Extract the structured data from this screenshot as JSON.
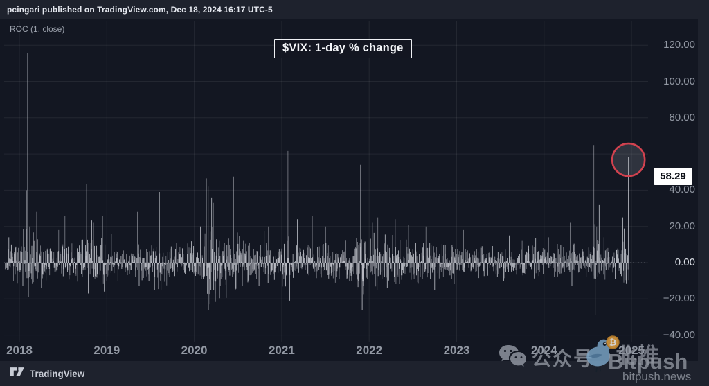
{
  "attribution": "pcingari published on TradingView.com, Dec 18, 2024 16:17 UTC-5",
  "indicator_label": "ROC (1, close)",
  "footer": {
    "brand": "TradingView"
  },
  "watermark": {
    "wechat_label": "公众号",
    "brand_cn": "北推",
    "brand": "Bitpush",
    "domain": "bitpush.news"
  },
  "colors": {
    "chart_bg": "#131722",
    "frame_bg": "#1e222d",
    "bar": "#c9ccd4",
    "grid": "rgba(255,255,255,0.07)",
    "annotation_red": "#d2424f",
    "badge_bg": "#ffffff",
    "bird_blue": "#7ba6c8",
    "bitcoin_orange": "#e8a33d"
  },
  "chart_data": {
    "type": "bar",
    "title": "$VIX: 1-day % change",
    "indicator": "ROC (1, close)",
    "xlabel": "",
    "ylabel": "",
    "x_tick_labels": [
      "2018",
      "2019",
      "2020",
      "2021",
      "2022",
      "2023",
      "2024",
      "2025"
    ],
    "x_tick_years": [
      2018,
      2019,
      2020,
      2021,
      2022,
      2023,
      2024,
      2025
    ],
    "y_gridline_values": [
      120,
      100,
      80,
      60,
      40,
      20,
      0,
      -20,
      -40
    ],
    "y_tick_labels": [
      {
        "value": 120,
        "label": "120.00"
      },
      {
        "value": 100,
        "label": "100.00"
      },
      {
        "value": 80,
        "label": "80.00"
      },
      {
        "value": 40,
        "label": "40.00"
      },
      {
        "value": 20,
        "label": "20.00"
      },
      {
        "value": 0,
        "label": "0.00",
        "highlight": true
      },
      {
        "value": -20,
        "label": "−20.00"
      },
      {
        "value": -40,
        "label": "−40.00"
      }
    ],
    "xlim": [
      2017.84,
      2025.05
    ],
    "ylim": [
      -44,
      134
    ],
    "grid": true,
    "zero_line": true,
    "last_value": 58.29,
    "price_badge_label": "58.29",
    "annotation_circle": {
      "x": 2024.965,
      "y": 58.29
    },
    "notable_spikes": [
      [
        2017.88,
        14
      ],
      [
        2017.93,
        -10
      ],
      [
        2018.095,
        115.6
      ],
      [
        2018.103,
        -19
      ],
      [
        2018.12,
        20
      ],
      [
        2018.2,
        28
      ],
      [
        2018.25,
        -14
      ],
      [
        2018.45,
        18
      ],
      [
        2018.77,
        43.5
      ],
      [
        2018.79,
        -17
      ],
      [
        2018.85,
        22
      ],
      [
        2018.95,
        26
      ],
      [
        2018.97,
        -16
      ],
      [
        2019.05,
        16
      ],
      [
        2019.35,
        28
      ],
      [
        2019.37,
        -13
      ],
      [
        2019.6,
        39
      ],
      [
        2019.62,
        -15
      ],
      [
        2019.95,
        18
      ],
      [
        2020.07,
        20
      ],
      [
        2020.14,
        46.5
      ],
      [
        2020.16,
        42
      ],
      [
        2020.18,
        -23
      ],
      [
        2020.2,
        36
      ],
      [
        2020.22,
        33
      ],
      [
        2020.24,
        -17
      ],
      [
        2020.3,
        -13
      ],
      [
        2020.45,
        47.5
      ],
      [
        2020.47,
        -15
      ],
      [
        2020.65,
        22
      ],
      [
        2020.85,
        20
      ],
      [
        2021.07,
        61.6
      ],
      [
        2021.09,
        -21
      ],
      [
        2021.18,
        24
      ],
      [
        2021.35,
        26
      ],
      [
        2021.5,
        20
      ],
      [
        2021.9,
        54
      ],
      [
        2021.92,
        -26
      ],
      [
        2022.04,
        22
      ],
      [
        2022.1,
        25
      ],
      [
        2022.3,
        24
      ],
      [
        2022.45,
        21
      ],
      [
        2022.65,
        20
      ],
      [
        2022.75,
        -15
      ],
      [
        2023.08,
        18
      ],
      [
        2023.2,
        14
      ],
      [
        2023.6,
        15
      ],
      [
        2023.75,
        12
      ],
      [
        2024.05,
        14
      ],
      [
        2024.3,
        22
      ],
      [
        2024.32,
        -13
      ],
      [
        2024.57,
        64.9
      ],
      [
        2024.585,
        -29
      ],
      [
        2024.6,
        20
      ],
      [
        2024.87,
        -23
      ],
      [
        2024.9,
        25
      ],
      [
        2024.965,
        58.29
      ]
    ],
    "synthesis": {
      "seed": 7,
      "points": 1790,
      "base_sigma": 4.0,
      "positive_skew": 1.18,
      "tail_prob": 0.015,
      "tail_mult": 2.3,
      "clamp": [
        -28,
        40
      ],
      "volatility_clusters": [
        [
          2018.1,
          5.0,
          0.07
        ],
        [
          2018.8,
          3.5,
          0.12
        ],
        [
          2019.6,
          2.0,
          0.08
        ],
        [
          2020.2,
          7.0,
          0.1
        ],
        [
          2020.5,
          3.0,
          0.15
        ],
        [
          2021.05,
          2.5,
          0.05
        ],
        [
          2021.9,
          2.5,
          0.05
        ],
        [
          2022.3,
          2.2,
          0.35
        ],
        [
          2024.6,
          3.0,
          0.05
        ],
        [
          2024.95,
          2.5,
          0.05
        ]
      ]
    }
  }
}
